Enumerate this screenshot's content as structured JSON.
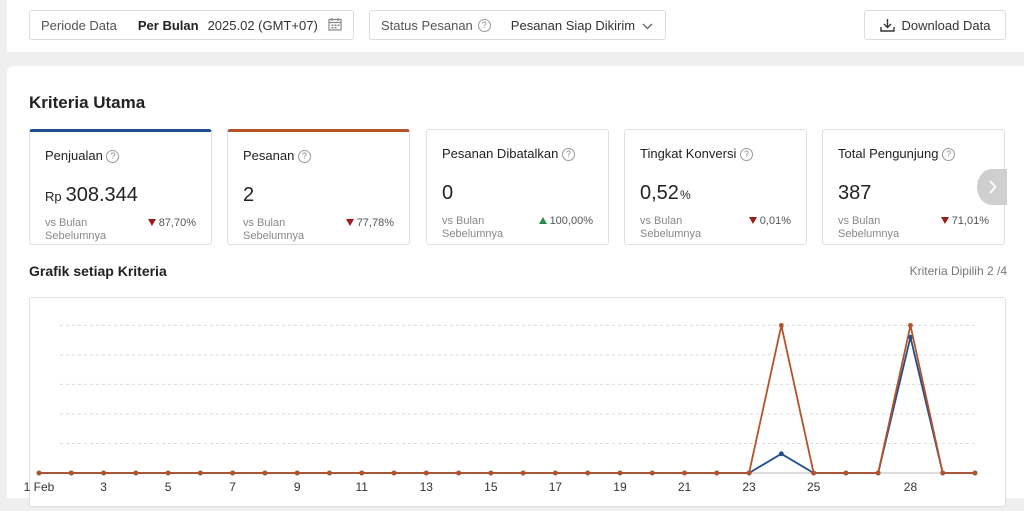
{
  "filters": {
    "period_label": "Periode Data",
    "period_mode": "Per Bulan",
    "period_value": "2025.02 (GMT+07)",
    "status_label": "Status Pesanan",
    "status_value": "Pesanan Siap Dikirim",
    "download_label": "Download Data"
  },
  "section_title": "Kriteria Utama",
  "cards": [
    {
      "title": "Penjualan",
      "unit_pre": "Rp",
      "value": "308.344",
      "unit_post": "",
      "vs": "vs Bulan Sebelumnya",
      "change": "87,70%",
      "trend": "down"
    },
    {
      "title": "Pesanan",
      "unit_pre": "",
      "value": "2",
      "unit_post": "",
      "vs": "vs Bulan Sebelumnya",
      "change": "77,78%",
      "trend": "down"
    },
    {
      "title": "Pesanan Dibatalkan",
      "unit_pre": "",
      "value": "0",
      "unit_post": "",
      "vs": "vs Bulan Sebelumnya",
      "change": "100,00%",
      "trend": "up"
    },
    {
      "title": "Tingkat Konversi",
      "unit_pre": "",
      "value": "0,52",
      "unit_post": "%",
      "vs": "vs Bulan Sebelumnya",
      "change": "0,01%",
      "trend": "down"
    },
    {
      "title": "Total Pengunjung",
      "unit_pre": "",
      "value": "387",
      "unit_post": "",
      "vs": "vs Bulan Sebelumnya",
      "change": "71,01%",
      "trend": "down"
    }
  ],
  "chart_title": "Grafik setiap Kriteria",
  "chart_info": "Kriteria Dipilih 2 /4",
  "colors": {
    "blue": "#1f4e8c",
    "red": "#b4532a",
    "down": "#a11b1b",
    "up": "#2a8a4a"
  },
  "chart_data": {
    "type": "line",
    "x": [
      1,
      2,
      3,
      4,
      5,
      6,
      7,
      8,
      9,
      10,
      11,
      12,
      13,
      14,
      15,
      16,
      17,
      18,
      19,
      20,
      21,
      22,
      23,
      24,
      25,
      26,
      27,
      28,
      29,
      30
    ],
    "tick_labels": [
      "1 Feb",
      "3",
      "5",
      "7",
      "9",
      "11",
      "13",
      "15",
      "17",
      "19",
      "21",
      "23",
      "25",
      "28"
    ],
    "tick_x": [
      1,
      3,
      5,
      7,
      9,
      11,
      13,
      15,
      17,
      19,
      21,
      23,
      25,
      28
    ],
    "series": [
      {
        "color": "#1f4e8c",
        "values": [
          0,
          0,
          0,
          0,
          0,
          0,
          0,
          0,
          0,
          0,
          0,
          0,
          0,
          0,
          0,
          0,
          0,
          0,
          0,
          0,
          0,
          0,
          0,
          0.13,
          0,
          0,
          0,
          0.92,
          0,
          0
        ]
      },
      {
        "color": "#b4532a",
        "values": [
          0,
          0,
          0,
          0,
          0,
          0,
          0,
          0,
          0,
          0,
          0,
          0,
          0,
          0,
          0,
          0,
          0,
          0,
          0,
          0,
          0,
          0,
          0,
          1,
          0,
          0,
          0,
          1,
          0,
          0
        ]
      }
    ],
    "ylim": [
      0,
      1.05
    ],
    "grid": true
  }
}
